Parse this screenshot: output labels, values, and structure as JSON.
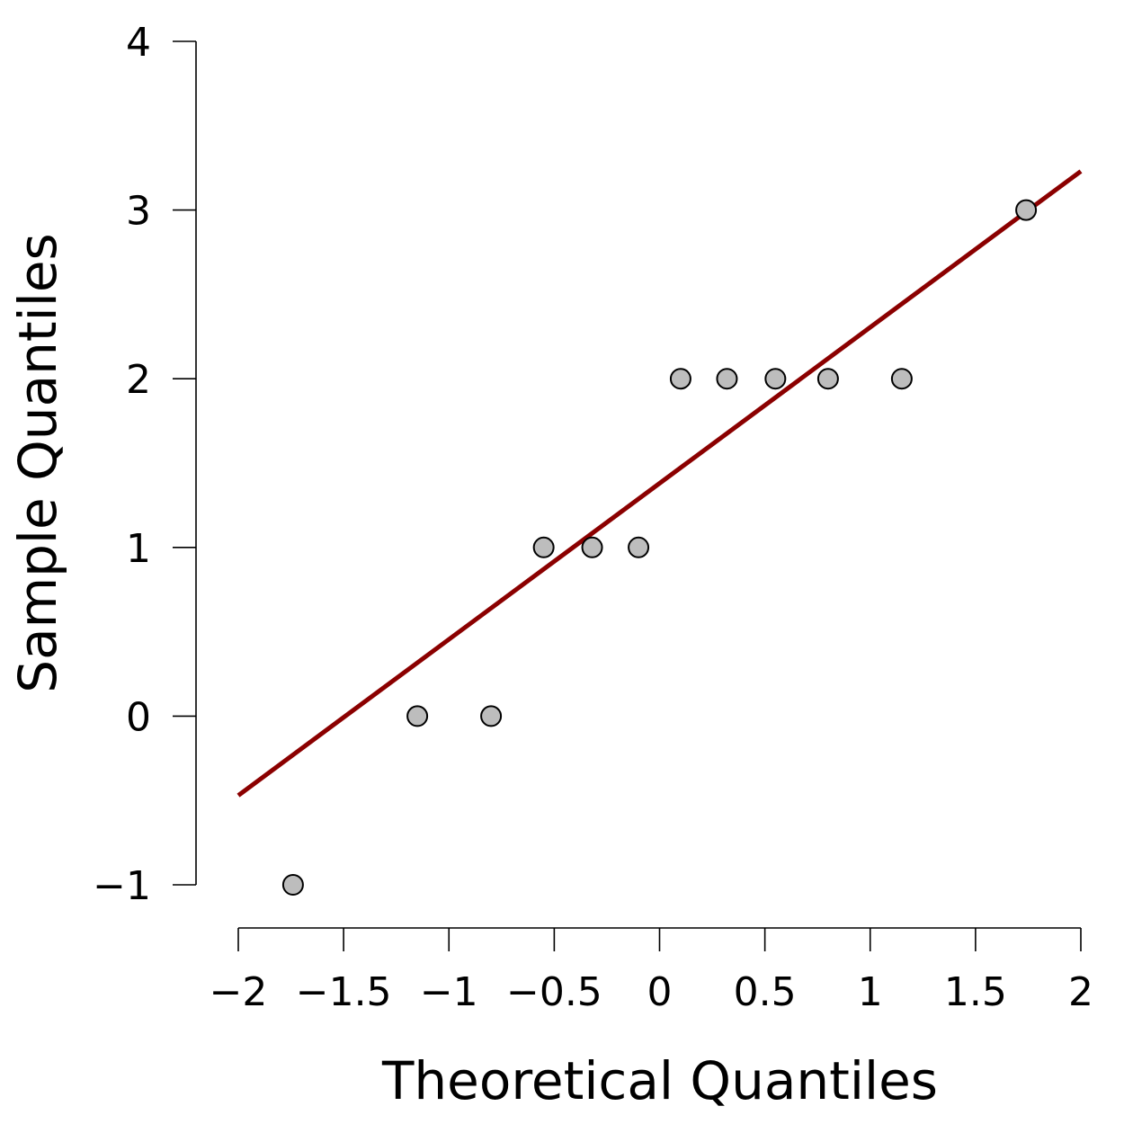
{
  "chart_data": {
    "type": "scatter",
    "title": "",
    "xlabel": "Theoretical Quantiles",
    "ylabel": "Sample Quantiles",
    "xlim": [
      -2,
      2
    ],
    "ylim": [
      -1,
      4
    ],
    "x_ticks": [
      -2,
      -1.5,
      -1,
      -0.5,
      0,
      0.5,
      1,
      1.5,
      2
    ],
    "x_tick_labels": [
      "−2",
      "−1.5",
      "−1",
      "−0.5",
      "0",
      "0.5",
      "1",
      "1.5",
      "2"
    ],
    "y_ticks": [
      -1,
      0,
      1,
      2,
      3,
      4
    ],
    "y_tick_labels": [
      "−1",
      "0",
      "1",
      "2",
      "3",
      "4"
    ],
    "grid": false,
    "points": [
      {
        "x": -1.74,
        "y": -1
      },
      {
        "x": -1.15,
        "y": 0
      },
      {
        "x": -0.8,
        "y": 0
      },
      {
        "x": -0.55,
        "y": 1
      },
      {
        "x": -0.32,
        "y": 1
      },
      {
        "x": -0.1,
        "y": 1
      },
      {
        "x": 0.1,
        "y": 2
      },
      {
        "x": 0.32,
        "y": 2
      },
      {
        "x": 0.55,
        "y": 2
      },
      {
        "x": 0.8,
        "y": 2
      },
      {
        "x": 1.15,
        "y": 2
      },
      {
        "x": 1.74,
        "y": 3
      }
    ],
    "reference_line": {
      "x": [
        -2,
        2
      ],
      "y": [
        -0.47,
        3.23
      ]
    },
    "colors": {
      "point_fill": "#bdbdbd",
      "point_stroke": "#000000",
      "reference_line": "#8b0000"
    }
  }
}
